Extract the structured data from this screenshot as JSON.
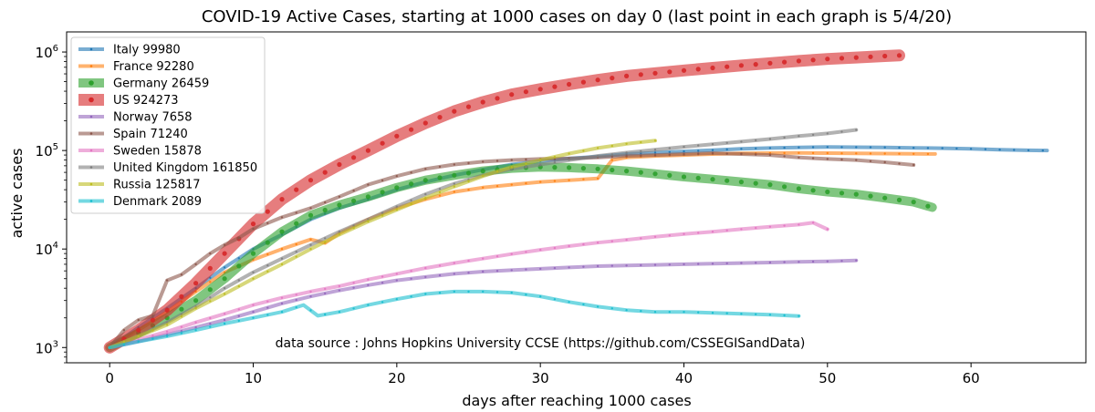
{
  "chart_data": {
    "type": "line",
    "title": "COVID-19 Active Cases, starting at 1000 cases on day 0 (last point in each graph is 5/4/20)",
    "xlabel": "days after reaching 1000 cases",
    "ylabel": "active cases",
    "xlim": [
      -3,
      68
    ],
    "ylim": [
      700,
      1600000
    ],
    "yscale": "log",
    "xticks": [
      0,
      10,
      20,
      30,
      40,
      50,
      60
    ],
    "yticks": [
      {
        "value": 1000,
        "label": "10",
        "exp": "3"
      },
      {
        "value": 10000,
        "label": "10",
        "exp": "4"
      },
      {
        "value": 100000,
        "label": "10",
        "exp": "5"
      },
      {
        "value": 1000000,
        "label": "10",
        "exp": "6"
      }
    ],
    "annotation": "data source : Johns Hopkins University CCSE (https://github.com/CSSEGISandData)",
    "grid": false,
    "legend_position": "top-left",
    "series": [
      {
        "name": "Italy 99980",
        "color": "#1f77b4",
        "width": 4,
        "points": [
          [
            0,
            1000
          ],
          [
            2,
            1600
          ],
          [
            4,
            2500
          ],
          [
            6,
            4000
          ],
          [
            8,
            6500
          ],
          [
            10,
            10000
          ],
          [
            12,
            14000
          ],
          [
            14,
            20000
          ],
          [
            16,
            26000
          ],
          [
            18,
            32000
          ],
          [
            20,
            40000
          ],
          [
            22,
            48000
          ],
          [
            24,
            56000
          ],
          [
            26,
            64000
          ],
          [
            28,
            72000
          ],
          [
            30,
            78000
          ],
          [
            32,
            83000
          ],
          [
            34,
            87000
          ],
          [
            36,
            92000
          ],
          [
            38,
            95000
          ],
          [
            40,
            98000
          ],
          [
            42,
            101000
          ],
          [
            44,
            104000
          ],
          [
            46,
            106000
          ],
          [
            48,
            107500
          ],
          [
            50,
            108500
          ],
          [
            52,
            108000
          ],
          [
            54,
            107500
          ],
          [
            56,
            106500
          ],
          [
            58,
            105500
          ],
          [
            60,
            104000
          ],
          [
            62,
            102000
          ],
          [
            64,
            100500
          ],
          [
            65.3,
            99980
          ]
        ]
      },
      {
        "name": "France 92280",
        "color": "#ff7f0e",
        "width": 4,
        "points": [
          [
            0,
            1000
          ],
          [
            2,
            1500
          ],
          [
            4,
            2300
          ],
          [
            6,
            3700
          ],
          [
            8,
            5800
          ],
          [
            10,
            7800
          ],
          [
            12,
            10000
          ],
          [
            14,
            12500
          ],
          [
            15,
            11500
          ],
          [
            16,
            14500
          ],
          [
            18,
            20000
          ],
          [
            20,
            26000
          ],
          [
            22,
            32000
          ],
          [
            24,
            38000
          ],
          [
            26,
            42000
          ],
          [
            28,
            45000
          ],
          [
            30,
            48000
          ],
          [
            32,
            50000
          ],
          [
            34,
            52000
          ],
          [
            35,
            80000
          ],
          [
            36,
            85000
          ],
          [
            38,
            88000
          ],
          [
            40,
            90000
          ],
          [
            42,
            92000
          ],
          [
            44,
            93500
          ],
          [
            46,
            94000
          ],
          [
            48,
            94500
          ],
          [
            50,
            94000
          ],
          [
            52,
            93500
          ],
          [
            54,
            93000
          ],
          [
            56,
            92500
          ],
          [
            57.5,
            92280
          ]
        ]
      },
      {
        "name": "Germany 26459",
        "color": "#2ca02c",
        "width": 10,
        "points": [
          [
            0,
            1000
          ],
          [
            2,
            1400
          ],
          [
            4,
            2000
          ],
          [
            6,
            3000
          ],
          [
            8,
            5000
          ],
          [
            10,
            9000
          ],
          [
            12,
            15000
          ],
          [
            14,
            22000
          ],
          [
            16,
            28000
          ],
          [
            18,
            34000
          ],
          [
            20,
            42000
          ],
          [
            22,
            50000
          ],
          [
            24,
            56000
          ],
          [
            26,
            62000
          ],
          [
            28,
            66000
          ],
          [
            30,
            68000
          ],
          [
            32,
            67000
          ],
          [
            34,
            65000
          ],
          [
            36,
            62000
          ],
          [
            38,
            58000
          ],
          [
            40,
            54000
          ],
          [
            42,
            51000
          ],
          [
            44,
            48000
          ],
          [
            46,
            45000
          ],
          [
            48,
            41000
          ],
          [
            50,
            38000
          ],
          [
            52,
            36000
          ],
          [
            54,
            33000
          ],
          [
            56,
            30000
          ],
          [
            57.3,
            26459
          ]
        ]
      },
      {
        "name": "US 924273",
        "color": "#d62728",
        "width": 13,
        "points": [
          [
            0,
            1000
          ],
          [
            2,
            1500
          ],
          [
            4,
            2400
          ],
          [
            6,
            4500
          ],
          [
            8,
            9000
          ],
          [
            10,
            18000
          ],
          [
            12,
            32000
          ],
          [
            14,
            50000
          ],
          [
            16,
            72000
          ],
          [
            18,
            100000
          ],
          [
            20,
            140000
          ],
          [
            22,
            190000
          ],
          [
            24,
            250000
          ],
          [
            26,
            310000
          ],
          [
            28,
            370000
          ],
          [
            30,
            420000
          ],
          [
            32,
            470000
          ],
          [
            34,
            520000
          ],
          [
            36,
            570000
          ],
          [
            38,
            610000
          ],
          [
            40,
            650000
          ],
          [
            42,
            690000
          ],
          [
            44,
            730000
          ],
          [
            46,
            770000
          ],
          [
            48,
            810000
          ],
          [
            50,
            850000
          ],
          [
            52,
            880000
          ],
          [
            54,
            910000
          ],
          [
            55,
            924273
          ]
        ]
      },
      {
        "name": "Norway 7658",
        "color": "#9467bd",
        "width": 4,
        "points": [
          [
            0,
            1000
          ],
          [
            2,
            1150
          ],
          [
            4,
            1350
          ],
          [
            6,
            1600
          ],
          [
            8,
            1900
          ],
          [
            10,
            2300
          ],
          [
            12,
            2800
          ],
          [
            14,
            3300
          ],
          [
            16,
            3800
          ],
          [
            18,
            4300
          ],
          [
            20,
            4800
          ],
          [
            22,
            5200
          ],
          [
            24,
            5600
          ],
          [
            26,
            5900
          ],
          [
            28,
            6100
          ],
          [
            30,
            6300
          ],
          [
            32,
            6500
          ],
          [
            34,
            6700
          ],
          [
            36,
            6800
          ],
          [
            38,
            6900
          ],
          [
            40,
            7000
          ],
          [
            42,
            7100
          ],
          [
            44,
            7200
          ],
          [
            46,
            7300
          ],
          [
            48,
            7400
          ],
          [
            50,
            7500
          ],
          [
            52,
            7658
          ]
        ]
      },
      {
        "name": "Spain 71240",
        "color": "#8c564b",
        "width": 4,
        "points": [
          [
            0,
            1000
          ],
          [
            1,
            1500
          ],
          [
            2,
            1900
          ],
          [
            3,
            2100
          ],
          [
            4,
            4800
          ],
          [
            5,
            5500
          ],
          [
            6,
            7000
          ],
          [
            7,
            9000
          ],
          [
            8,
            11000
          ],
          [
            9,
            13000
          ],
          [
            10,
            16000
          ],
          [
            12,
            21000
          ],
          [
            14,
            26000
          ],
          [
            16,
            34000
          ],
          [
            18,
            45000
          ],
          [
            20,
            55000
          ],
          [
            22,
            65000
          ],
          [
            24,
            72000
          ],
          [
            26,
            77000
          ],
          [
            28,
            80000
          ],
          [
            30,
            82000
          ],
          [
            32,
            83000
          ],
          [
            34,
            85000
          ],
          [
            36,
            88000
          ],
          [
            38,
            90000
          ],
          [
            40,
            92000
          ],
          [
            42,
            94000
          ],
          [
            44,
            92000
          ],
          [
            46,
            90000
          ],
          [
            48,
            85000
          ],
          [
            50,
            82000
          ],
          [
            52,
            80000
          ],
          [
            54,
            76000
          ],
          [
            56,
            71240
          ]
        ]
      },
      {
        "name": "Sweden 15878",
        "color": "#e377c2",
        "width": 4,
        "points": [
          [
            0,
            1000
          ],
          [
            2,
            1200
          ],
          [
            4,
            1450
          ],
          [
            6,
            1800
          ],
          [
            8,
            2200
          ],
          [
            10,
            2700
          ],
          [
            12,
            3200
          ],
          [
            14,
            3700
          ],
          [
            16,
            4200
          ],
          [
            18,
            4900
          ],
          [
            20,
            5600
          ],
          [
            22,
            6400
          ],
          [
            24,
            7200
          ],
          [
            26,
            8000
          ],
          [
            28,
            8900
          ],
          [
            30,
            9800
          ],
          [
            32,
            10700
          ],
          [
            34,
            11600
          ],
          [
            36,
            12400
          ],
          [
            38,
            13300
          ],
          [
            40,
            14200
          ],
          [
            42,
            15000
          ],
          [
            44,
            15900
          ],
          [
            46,
            16800
          ],
          [
            48,
            17700
          ],
          [
            49,
            18500
          ],
          [
            50,
            15878
          ]
        ]
      },
      {
        "name": "United Kingdom 161850",
        "color": "#7f7f7f",
        "width": 4,
        "points": [
          [
            0,
            1000
          ],
          [
            2,
            1300
          ],
          [
            4,
            1800
          ],
          [
            6,
            2600
          ],
          [
            8,
            4000
          ],
          [
            10,
            5800
          ],
          [
            12,
            8000
          ],
          [
            14,
            11000
          ],
          [
            16,
            15000
          ],
          [
            18,
            20000
          ],
          [
            20,
            27000
          ],
          [
            22,
            36000
          ],
          [
            24,
            46000
          ],
          [
            26,
            56000
          ],
          [
            28,
            65000
          ],
          [
            30,
            72000
          ],
          [
            32,
            80000
          ],
          [
            34,
            88000
          ],
          [
            36,
            95000
          ],
          [
            38,
            102000
          ],
          [
            40,
            109000
          ],
          [
            42,
            116000
          ],
          [
            44,
            123000
          ],
          [
            46,
            131000
          ],
          [
            48,
            140000
          ],
          [
            50,
            149000
          ],
          [
            52,
            161850
          ]
        ]
      },
      {
        "name": "Russia 125817",
        "color": "#bcbd22",
        "width": 4,
        "points": [
          [
            0,
            1000
          ],
          [
            2,
            1300
          ],
          [
            4,
            1700
          ],
          [
            6,
            2500
          ],
          [
            8,
            3500
          ],
          [
            10,
            5000
          ],
          [
            12,
            7000
          ],
          [
            14,
            10000
          ],
          [
            16,
            14000
          ],
          [
            18,
            19000
          ],
          [
            20,
            25000
          ],
          [
            22,
            33000
          ],
          [
            24,
            43000
          ],
          [
            26,
            55000
          ],
          [
            28,
            68000
          ],
          [
            30,
            80000
          ],
          [
            32,
            93000
          ],
          [
            34,
            106000
          ],
          [
            36,
            117000
          ],
          [
            38,
            125817
          ]
        ]
      },
      {
        "name": "Denmark 2089",
        "color": "#17becf",
        "width": 4,
        "points": [
          [
            0,
            1000
          ],
          [
            2,
            1150
          ],
          [
            4,
            1300
          ],
          [
            6,
            1500
          ],
          [
            8,
            1750
          ],
          [
            10,
            2000
          ],
          [
            12,
            2300
          ],
          [
            13.5,
            2700
          ],
          [
            14.5,
            2100
          ],
          [
            16,
            2300
          ],
          [
            18,
            2700
          ],
          [
            20,
            3100
          ],
          [
            22,
            3500
          ],
          [
            24,
            3700
          ],
          [
            26,
            3700
          ],
          [
            28,
            3600
          ],
          [
            30,
            3300
          ],
          [
            32,
            2900
          ],
          [
            34,
            2600
          ],
          [
            36,
            2400
          ],
          [
            38,
            2300
          ],
          [
            40,
            2300
          ],
          [
            42,
            2250
          ],
          [
            44,
            2200
          ],
          [
            46,
            2150
          ],
          [
            48,
            2089
          ]
        ]
      }
    ]
  }
}
